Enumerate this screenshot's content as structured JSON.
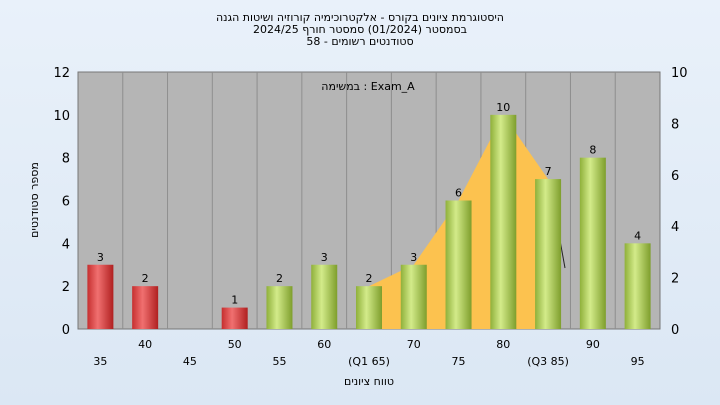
{
  "chart_data": {
    "type": "bar",
    "title_lines": [
      "היסטוגרמת ציונים בקורס - אלקטרוכימיה קורוזיה ושיטות הגנה",
      "בסמסטר  (01/2024)  סמסטר חורף 2024/25",
      "58 - סטודנטים רשומים"
    ],
    "annotation": "במשימה : Exam_A",
    "xlabel": "טווח ציונים",
    "ylabel": "מספר סטודנטים",
    "ylim": [
      0,
      12
    ],
    "yticks": [
      0,
      2,
      4,
      6,
      8,
      10,
      12
    ],
    "y2lim": [
      0,
      10
    ],
    "y2ticks": [
      0,
      2,
      4,
      6,
      8,
      10
    ],
    "grid": true,
    "categories": [
      "35",
      "40",
      "45",
      "50",
      "55",
      "60",
      "65",
      "70",
      "75",
      "80",
      "85",
      "90",
      "95"
    ],
    "category_labels": [
      "35",
      "40",
      "45",
      "50",
      "55",
      "60",
      "(Q1 65)",
      "70",
      "75",
      "80",
      "(Q3 85)",
      "90",
      "95"
    ],
    "values": [
      3,
      2,
      0,
      1,
      2,
      3,
      2,
      3,
      6,
      10,
      7,
      8,
      4
    ],
    "value_labels": [
      "3",
      "2",
      "",
      "1",
      "2",
      "3",
      "2",
      "3",
      "6",
      "10",
      "7",
      "8",
      "4"
    ],
    "bar_colors": [
      "red",
      "red",
      "red",
      "red",
      "green",
      "green",
      "green",
      "green",
      "green",
      "green",
      "green",
      "green",
      "green"
    ],
    "quartile_area": {
      "from_category": "65",
      "to_category": "85",
      "color": "#f6c04d"
    },
    "colors": {
      "plot_bg": "#b5b5b5",
      "red": "#d63a3a",
      "green": "#a9c94b",
      "area": "#fcc24f"
    }
  }
}
